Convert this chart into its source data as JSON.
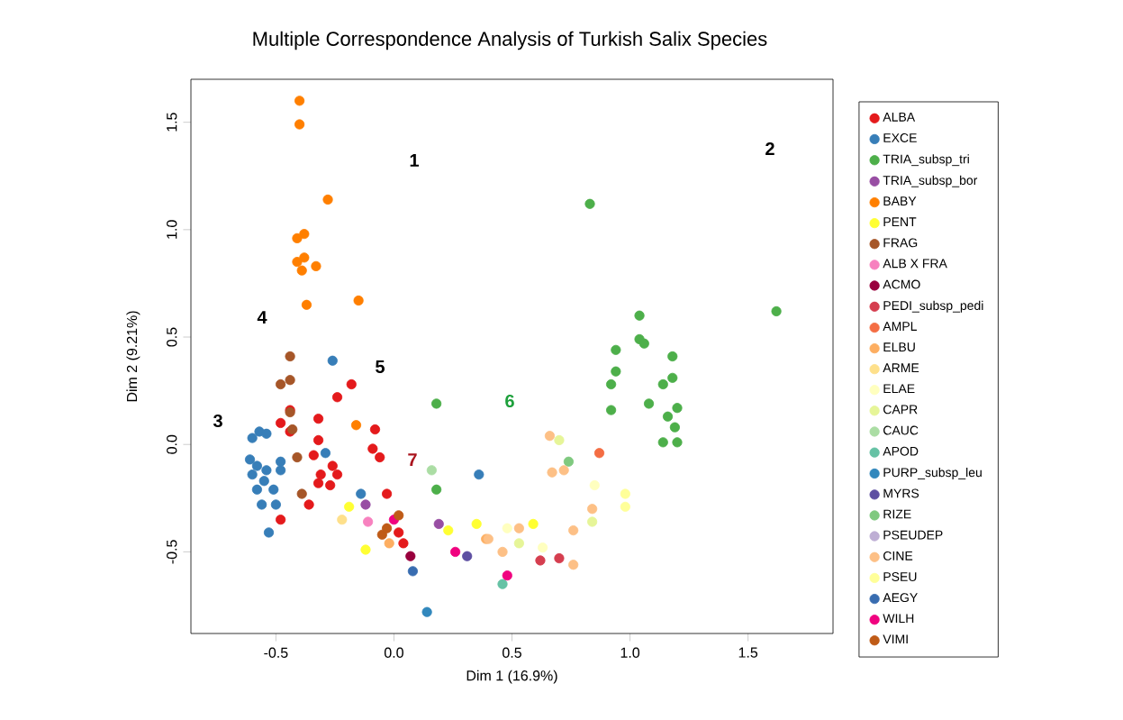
{
  "chart_data": {
    "type": "scatter",
    "title": "Multiple Correspondence Analysis of Turkish Salix Species",
    "xlabel": "Dim 1 (16.9%)",
    "ylabel": "Dim 2 (9.21%)",
    "xlim": [
      -0.86,
      1.86
    ],
    "ylim": [
      -0.88,
      1.7
    ],
    "xticks": [
      {
        "value": -0.5,
        "label": "-0.5"
      },
      {
        "value": 0,
        "label": "0.0"
      },
      {
        "value": 0.5,
        "label": "0.5"
      },
      {
        "value": 1,
        "label": "1.0"
      },
      {
        "value": 1.5,
        "label": "1.5"
      }
    ],
    "yticks": [
      {
        "value": -0.5,
        "label": "-0.5"
      },
      {
        "value": 0,
        "label": "0.0"
      },
      {
        "value": 0.5,
        "label": "0.5"
      },
      {
        "value": 1,
        "label": "1.0"
      },
      {
        "value": 1.5,
        "label": "1.5"
      }
    ],
    "grid": false,
    "legend": "right",
    "marker": "circle",
    "annotations": [
      "1",
      "2",
      "3",
      "4",
      "5",
      "6",
      "7"
    ],
    "series": [
      {
        "name": "ALBA",
        "color": "#e41a1c",
        "x": [
          -0.18,
          -0.24,
          -0.32,
          -0.08,
          -0.32,
          -0.09,
          -0.06,
          -0.44,
          -0.48,
          -0.44,
          -0.34,
          -0.26,
          -0.31,
          -0.24,
          -0.32,
          -0.27,
          -0.36,
          -0.48,
          -0.03,
          0.02,
          0.04
        ],
        "values": [
          0.28,
          0.22,
          0.12,
          0.07,
          0.02,
          -0.02,
          -0.06,
          0.16,
          0.1,
          0.06,
          -0.05,
          -0.1,
          -0.14,
          -0.14,
          -0.18,
          -0.19,
          -0.28,
          -0.35,
          -0.23,
          -0.41,
          -0.46
        ]
      },
      {
        "name": "EXCE",
        "color": "#377eb8",
        "x": [
          -0.26,
          -0.29,
          0.36,
          -0.14,
          -0.57,
          -0.6,
          -0.54,
          -0.61,
          -0.58,
          -0.6,
          -0.54,
          -0.48,
          -0.55,
          -0.58,
          -0.51,
          -0.56,
          -0.5,
          -0.53,
          -0.48
        ],
        "values": [
          0.39,
          -0.04,
          -0.14,
          -0.23,
          0.06,
          0.03,
          0.05,
          -0.07,
          -0.1,
          -0.14,
          -0.12,
          -0.12,
          -0.17,
          -0.21,
          -0.21,
          -0.28,
          -0.28,
          -0.41,
          -0.08
        ]
      },
      {
        "name": "TRIA_subsp_tri",
        "color": "#4daf4a",
        "x": [
          0.83,
          1.62,
          1.04,
          1.04,
          1.06,
          0.94,
          1.18,
          0.94,
          1.18,
          0.92,
          1.14,
          1.08,
          1.2,
          0.92,
          1.16,
          1.19,
          1.14,
          1.2,
          0.18,
          0.18
        ],
        "values": [
          1.12,
          0.62,
          0.6,
          0.49,
          0.47,
          0.44,
          0.41,
          0.34,
          0.31,
          0.28,
          0.28,
          0.19,
          0.17,
          0.16,
          0.13,
          0.08,
          0.01,
          0.01,
          0.19,
          -0.21
        ]
      },
      {
        "name": "TRIA_subsp_bor",
        "color": "#984ea3",
        "x": [
          -0.12,
          0.19
        ],
        "values": [
          -0.28,
          -0.37
        ]
      },
      {
        "name": "BABY",
        "color": "#ff7f00",
        "x": [
          -0.4,
          -0.4,
          -0.28,
          -0.38,
          -0.41,
          -0.38,
          -0.41,
          -0.39,
          -0.33,
          -0.37,
          -0.15,
          -0.16
        ],
        "values": [
          1.6,
          1.49,
          1.14,
          0.98,
          0.96,
          0.87,
          0.85,
          0.81,
          0.83,
          0.65,
          0.67,
          0.09
        ]
      },
      {
        "name": "PENT",
        "color": "#ffff33",
        "x": [
          -0.12,
          -0.19,
          0.23,
          0.35,
          0.59
        ],
        "values": [
          -0.49,
          -0.29,
          -0.4,
          -0.37,
          -0.37
        ]
      },
      {
        "name": "FRAG",
        "color": "#a65628",
        "x": [
          -0.44,
          -0.44,
          -0.48,
          -0.44,
          -0.43,
          -0.41,
          -0.39
        ],
        "values": [
          0.41,
          0.3,
          0.28,
          0.15,
          0.07,
          -0.06,
          -0.23
        ]
      },
      {
        "name": "ALB X FRA",
        "color": "#f781bf",
        "x": [
          -0.11
        ],
        "values": [
          -0.36
        ]
      },
      {
        "name": "ACMO",
        "color": "#99003d",
        "x": [
          0.07
        ],
        "values": [
          -0.52
        ]
      },
      {
        "name": "PEDI_subsp_pedi",
        "color": "#d53e4f",
        "x": [
          0.62,
          0.7
        ],
        "values": [
          -0.54,
          -0.53
        ]
      },
      {
        "name": "AMPL",
        "color": "#f46d43",
        "x": [
          0.87
        ],
        "values": [
          -0.04
        ]
      },
      {
        "name": "ELBU",
        "color": "#fdae61",
        "x": [
          -0.02,
          0.39
        ],
        "values": [
          -0.46,
          -0.44
        ]
      },
      {
        "name": "ARME",
        "color": "#fee08b",
        "x": [
          -0.22
        ],
        "values": [
          -0.35
        ]
      },
      {
        "name": "ELAE",
        "color": "#ffffbf",
        "x": [
          0.85,
          0.48,
          0.63
        ],
        "values": [
          -0.19,
          -0.39,
          -0.48
        ]
      },
      {
        "name": "CAPR",
        "color": "#e6f598",
        "x": [
          0.7,
          0.53,
          0.84
        ],
        "values": [
          0.02,
          -0.46,
          -0.36
        ]
      },
      {
        "name": "CAUC",
        "color": "#abdda4",
        "x": [
          0.16
        ],
        "values": [
          -0.12
        ]
      },
      {
        "name": "APOD",
        "color": "#66c2a5",
        "x": [
          0.46
        ],
        "values": [
          -0.65
        ]
      },
      {
        "name": "PURP_subsp_leu",
        "color": "#3288bd",
        "x": [
          0.14
        ],
        "values": [
          -0.78
        ]
      },
      {
        "name": "MYRS",
        "color": "#5e4fa2",
        "x": [
          0.31
        ],
        "values": [
          -0.52
        ]
      },
      {
        "name": "RIZE",
        "color": "#7fc97f",
        "x": [
          0.74
        ],
        "values": [
          -0.08
        ]
      },
      {
        "name": "PSEUDEP",
        "color": "#beaed4"
      },
      {
        "name": "CINE",
        "color": "#fdc086",
        "x": [
          0.67,
          0.72,
          0.66,
          0.84,
          0.76,
          0.4,
          0.46,
          0.76,
          0.53
        ],
        "values": [
          -0.13,
          -0.12,
          0.04,
          -0.3,
          -0.4,
          -0.44,
          -0.5,
          -0.56,
          -0.39
        ]
      },
      {
        "name": "PSEU",
        "color": "#ffff99",
        "x": [
          0.98,
          0.98
        ],
        "values": [
          -0.23,
          -0.29
        ]
      },
      {
        "name": "AEGY",
        "color": "#386cb0",
        "x": [
          0.08
        ],
        "values": [
          -0.59
        ]
      },
      {
        "name": "WILH",
        "color": "#f0027f",
        "x": [
          0.26,
          0.48,
          0.0
        ],
        "values": [
          -0.5,
          -0.61,
          -0.35
        ]
      },
      {
        "name": "VIMI",
        "color": "#bf5b17",
        "x": [
          0.02,
          -0.05,
          -0.03
        ],
        "values": [
          -0.33,
          -0.42,
          -0.39
        ]
      }
    ]
  }
}
